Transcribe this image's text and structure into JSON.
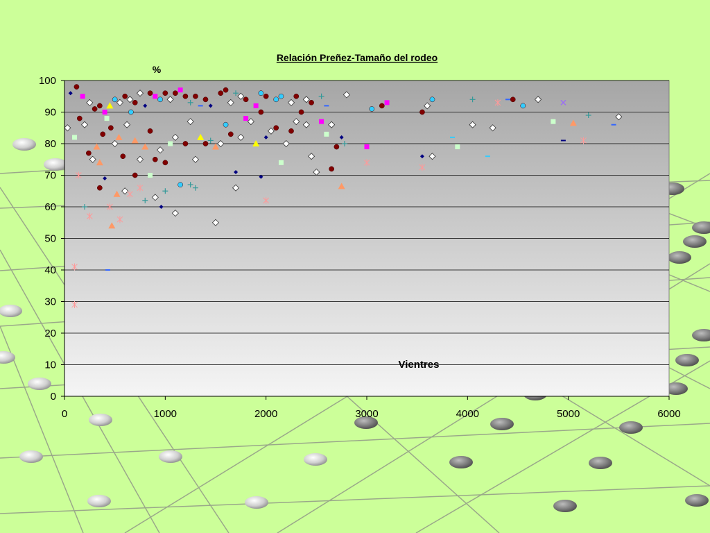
{
  "chart_data": {
    "type": "scatter",
    "title": "Relación Preñez-Tamaño del rodeo",
    "ylabel": "%",
    "xlabel": "Vientres",
    "xlim": [
      0,
      6000
    ],
    "ylim": [
      0,
      100
    ],
    "xticks": [
      0,
      1000,
      2000,
      3000,
      4000,
      5000,
      6000
    ],
    "yticks": [
      0,
      10,
      20,
      30,
      40,
      50,
      60,
      70,
      80,
      90,
      100
    ],
    "grid": true,
    "legend": "none",
    "background_color": "#ccff99",
    "plot_gradient": [
      "#a6a6a6",
      "#f5f5f5"
    ],
    "points": [
      {
        "x": 60,
        "y": 96,
        "m": "diamond",
        "c": "#000080"
      },
      {
        "x": 120,
        "y": 98,
        "m": "circle",
        "c": "#800000"
      },
      {
        "x": 180,
        "y": 95,
        "m": "square",
        "c": "#ff00ff"
      },
      {
        "x": 250,
        "y": 93,
        "m": "diamond_open",
        "c": "#ffffff"
      },
      {
        "x": 300,
        "y": 91,
        "m": "circle",
        "c": "#800000"
      },
      {
        "x": 350,
        "y": 92,
        "m": "circle",
        "c": "#800000"
      },
      {
        "x": 400,
        "y": 90,
        "m": "square",
        "c": "#ff00ff"
      },
      {
        "x": 450,
        "y": 92,
        "m": "triangle",
        "c": "#ffff00"
      },
      {
        "x": 500,
        "y": 94,
        "m": "circle",
        "c": "#33ccff"
      },
      {
        "x": 550,
        "y": 93,
        "m": "diamond_open",
        "c": "#ffffff"
      },
      {
        "x": 600,
        "y": 95,
        "m": "circle",
        "c": "#800000"
      },
      {
        "x": 650,
        "y": 94,
        "m": "diamond_open",
        "c": "#ffffff"
      },
      {
        "x": 700,
        "y": 93,
        "m": "circle",
        "c": "#800000"
      },
      {
        "x": 750,
        "y": 96,
        "m": "diamond_open",
        "c": "#ffffff"
      },
      {
        "x": 800,
        "y": 92,
        "m": "diamond",
        "c": "#000080"
      },
      {
        "x": 850,
        "y": 96,
        "m": "circle",
        "c": "#800000"
      },
      {
        "x": 900,
        "y": 95,
        "m": "square",
        "c": "#ff00ff"
      },
      {
        "x": 950,
        "y": 94,
        "m": "circle",
        "c": "#33ccff"
      },
      {
        "x": 1000,
        "y": 96,
        "m": "circle",
        "c": "#800000"
      },
      {
        "x": 1050,
        "y": 94,
        "m": "diamond_open",
        "c": "#ffffff"
      },
      {
        "x": 1100,
        "y": 96,
        "m": "circle",
        "c": "#800000"
      },
      {
        "x": 1150,
        "y": 97,
        "m": "square",
        "c": "#ff00ff"
      },
      {
        "x": 1200,
        "y": 95,
        "m": "circle",
        "c": "#800000"
      },
      {
        "x": 1250,
        "y": 93,
        "m": "plus",
        "c": "#339999"
      },
      {
        "x": 1300,
        "y": 95,
        "m": "circle",
        "c": "#800000"
      },
      {
        "x": 1350,
        "y": 92,
        "m": "dash",
        "c": "#3366ff"
      },
      {
        "x": 1400,
        "y": 94,
        "m": "circle",
        "c": "#800000"
      },
      {
        "x": 1450,
        "y": 92,
        "m": "diamond",
        "c": "#000080"
      },
      {
        "x": 1550,
        "y": 96,
        "m": "circle",
        "c": "#800000"
      },
      {
        "x": 1600,
        "y": 97,
        "m": "circle",
        "c": "#800000"
      },
      {
        "x": 1650,
        "y": 93,
        "m": "diamond_open",
        "c": "#ffffff"
      },
      {
        "x": 1700,
        "y": 96,
        "m": "plus",
        "c": "#339999"
      },
      {
        "x": 1750,
        "y": 95,
        "m": "diamond_open",
        "c": "#ffffff"
      },
      {
        "x": 1800,
        "y": 94,
        "m": "circle",
        "c": "#800000"
      },
      {
        "x": 1900,
        "y": 92,
        "m": "square",
        "c": "#ff00ff"
      },
      {
        "x": 1950,
        "y": 96,
        "m": "circle",
        "c": "#33ccff"
      },
      {
        "x": 2000,
        "y": 95,
        "m": "circle",
        "c": "#800000"
      },
      {
        "x": 2100,
        "y": 94,
        "m": "circle",
        "c": "#33ccff"
      },
      {
        "x": 2150,
        "y": 95,
        "m": "circle",
        "c": "#33ccff"
      },
      {
        "x": 2250,
        "y": 93,
        "m": "diamond_open",
        "c": "#ffffff"
      },
      {
        "x": 2300,
        "y": 95,
        "m": "circle",
        "c": "#800000"
      },
      {
        "x": 2400,
        "y": 94,
        "m": "diamond_open",
        "c": "#ffffff"
      },
      {
        "x": 2450,
        "y": 93,
        "m": "circle",
        "c": "#800000"
      },
      {
        "x": 2550,
        "y": 95,
        "m": "plus",
        "c": "#339999"
      },
      {
        "x": 2600,
        "y": 92,
        "m": "dash",
        "c": "#3366ff"
      },
      {
        "x": 2800,
        "y": 95.5,
        "m": "diamond_open",
        "c": "#ffffff"
      },
      {
        "x": 3050,
        "y": 91,
        "m": "circle",
        "c": "#33ccff"
      },
      {
        "x": 3150,
        "y": 92,
        "m": "circle",
        "c": "#800000"
      },
      {
        "x": 3200,
        "y": 93,
        "m": "square",
        "c": "#ff00ff"
      },
      {
        "x": 3550,
        "y": 90,
        "m": "circle",
        "c": "#800000"
      },
      {
        "x": 3600,
        "y": 92,
        "m": "diamond_open",
        "c": "#ffffff"
      },
      {
        "x": 3650,
        "y": 94,
        "m": "circle",
        "c": "#33ccff"
      },
      {
        "x": 4050,
        "y": 94,
        "m": "plus",
        "c": "#339999"
      },
      {
        "x": 4450,
        "y": 94,
        "m": "circle",
        "c": "#800000"
      },
      {
        "x": 4550,
        "y": 92,
        "m": "circle",
        "c": "#33ccff"
      },
      {
        "x": 4700,
        "y": 94,
        "m": "diamond_open",
        "c": "#ffffff"
      },
      {
        "x": 4950,
        "y": 93,
        "m": "cross",
        "c": "#9966ff"
      },
      {
        "x": 5200,
        "y": 89,
        "m": "plus",
        "c": "#339999"
      },
      {
        "x": 5500,
        "y": 88.5,
        "m": "diamond_open",
        "c": "#ffffff"
      },
      {
        "x": 30,
        "y": 85,
        "m": "diamond_open",
        "c": "#ffffff"
      },
      {
        "x": 100,
        "y": 82,
        "m": "square",
        "c": "#ccffcc"
      },
      {
        "x": 150,
        "y": 88,
        "m": "circle",
        "c": "#800000"
      },
      {
        "x": 200,
        "y": 86,
        "m": "diamond_open",
        "c": "#ffffff"
      },
      {
        "x": 240,
        "y": 77,
        "m": "circle",
        "c": "#800000"
      },
      {
        "x": 280,
        "y": 75,
        "m": "diamond_open",
        "c": "#ffffff"
      },
      {
        "x": 320,
        "y": 79,
        "m": "triangle",
        "c": "#ff9966"
      },
      {
        "x": 350,
        "y": 74,
        "m": "triangle",
        "c": "#ff9966"
      },
      {
        "x": 380,
        "y": 83,
        "m": "circle",
        "c": "#800000"
      },
      {
        "x": 420,
        "y": 88,
        "m": "square",
        "c": "#ccffcc"
      },
      {
        "x": 460,
        "y": 85,
        "m": "circle",
        "c": "#800000"
      },
      {
        "x": 500,
        "y": 80,
        "m": "diamond_open",
        "c": "#ffffff"
      },
      {
        "x": 540,
        "y": 82,
        "m": "triangle",
        "c": "#ff9966"
      },
      {
        "x": 580,
        "y": 76,
        "m": "circle",
        "c": "#800000"
      },
      {
        "x": 620,
        "y": 86,
        "m": "diamond_open",
        "c": "#ffffff"
      },
      {
        "x": 660,
        "y": 90,
        "m": "circle",
        "c": "#33ccff"
      },
      {
        "x": 700,
        "y": 81,
        "m": "triangle",
        "c": "#ff9966"
      },
      {
        "x": 750,
        "y": 75,
        "m": "diamond_open",
        "c": "#ffffff"
      },
      {
        "x": 800,
        "y": 79,
        "m": "triangle",
        "c": "#ff9966"
      },
      {
        "x": 850,
        "y": 84,
        "m": "circle",
        "c": "#800000"
      },
      {
        "x": 900,
        "y": 75,
        "m": "circle",
        "c": "#800000"
      },
      {
        "x": 950,
        "y": 78,
        "m": "diamond_open",
        "c": "#ffffff"
      },
      {
        "x": 1000,
        "y": 74,
        "m": "circle",
        "c": "#800000"
      },
      {
        "x": 1050,
        "y": 80,
        "m": "square",
        "c": "#ccffcc"
      },
      {
        "x": 1100,
        "y": 82,
        "m": "diamond_open",
        "c": "#ffffff"
      },
      {
        "x": 1150,
        "y": 67,
        "m": "circle",
        "c": "#33ccff"
      },
      {
        "x": 1200,
        "y": 80,
        "m": "circle",
        "c": "#800000"
      },
      {
        "x": 1250,
        "y": 87,
        "m": "diamond_open",
        "c": "#ffffff"
      },
      {
        "x": 1300,
        "y": 75,
        "m": "diamond_open",
        "c": "#ffffff"
      },
      {
        "x": 1350,
        "y": 82,
        "m": "triangle",
        "c": "#ffff00"
      },
      {
        "x": 1400,
        "y": 80,
        "m": "circle",
        "c": "#800000"
      },
      {
        "x": 1450,
        "y": 81,
        "m": "plus",
        "c": "#339999"
      },
      {
        "x": 1500,
        "y": 79,
        "m": "triangle",
        "c": "#ff9966"
      },
      {
        "x": 1550,
        "y": 80,
        "m": "diamond_open",
        "c": "#ffffff"
      },
      {
        "x": 1600,
        "y": 86,
        "m": "circle",
        "c": "#33ccff"
      },
      {
        "x": 1650,
        "y": 83,
        "m": "circle",
        "c": "#800000"
      },
      {
        "x": 1700,
        "y": 71,
        "m": "diamond",
        "c": "#000080"
      },
      {
        "x": 1750,
        "y": 82,
        "m": "diamond_open",
        "c": "#ffffff"
      },
      {
        "x": 1800,
        "y": 88,
        "m": "square",
        "c": "#ff00ff"
      },
      {
        "x": 1850,
        "y": 87,
        "m": "diamond_open",
        "c": "#ffffff"
      },
      {
        "x": 1900,
        "y": 80,
        "m": "triangle",
        "c": "#ffff00"
      },
      {
        "x": 1950,
        "y": 90,
        "m": "circle",
        "c": "#800000"
      },
      {
        "x": 2000,
        "y": 82,
        "m": "diamond",
        "c": "#000080"
      },
      {
        "x": 2050,
        "y": 84,
        "m": "diamond_open",
        "c": "#ffffff"
      },
      {
        "x": 2100,
        "y": 85,
        "m": "circle",
        "c": "#800000"
      },
      {
        "x": 2150,
        "y": 74,
        "m": "square",
        "c": "#ccffcc"
      },
      {
        "x": 2200,
        "y": 80,
        "m": "diamond_open",
        "c": "#ffffff"
      },
      {
        "x": 2250,
        "y": 84,
        "m": "circle",
        "c": "#800000"
      },
      {
        "x": 2300,
        "y": 87,
        "m": "diamond_open",
        "c": "#ffffff"
      },
      {
        "x": 2350,
        "y": 90,
        "m": "circle",
        "c": "#800000"
      },
      {
        "x": 2400,
        "y": 86,
        "m": "diamond_open",
        "c": "#ffffff"
      },
      {
        "x": 2450,
        "y": 76,
        "m": "diamond_open",
        "c": "#ffffff"
      },
      {
        "x": 2500,
        "y": 71,
        "m": "diamond_open",
        "c": "#ffffff"
      },
      {
        "x": 2550,
        "y": 87,
        "m": "square",
        "c": "#ff00ff"
      },
      {
        "x": 2600,
        "y": 83,
        "m": "square",
        "c": "#ccffcc"
      },
      {
        "x": 2650,
        "y": 86,
        "m": "diamond_open",
        "c": "#ffffff"
      },
      {
        "x": 2650,
        "y": 72,
        "m": "circle",
        "c": "#800000"
      },
      {
        "x": 2700,
        "y": 79,
        "m": "circle",
        "c": "#800000"
      },
      {
        "x": 2750,
        "y": 82,
        "m": "diamond",
        "c": "#000080"
      },
      {
        "x": 2780,
        "y": 80,
        "m": "plus",
        "c": "#339999"
      },
      {
        "x": 3000,
        "y": 79,
        "m": "square",
        "c": "#ff00ff"
      },
      {
        "x": 3550,
        "y": 76,
        "m": "diamond",
        "c": "#000080"
      },
      {
        "x": 3650,
        "y": 76,
        "m": "diamond_open",
        "c": "#ffffff"
      },
      {
        "x": 3900,
        "y": 79,
        "m": "square",
        "c": "#ccffcc"
      },
      {
        "x": 4050,
        "y": 86,
        "m": "diamond_open",
        "c": "#ffffff"
      },
      {
        "x": 4250,
        "y": 85,
        "m": "diamond_open",
        "c": "#ffffff"
      },
      {
        "x": 4850,
        "y": 87,
        "m": "square",
        "c": "#ccffcc"
      },
      {
        "x": 4950,
        "y": 81,
        "m": "dash",
        "c": "#000080"
      },
      {
        "x": 5050,
        "y": 86.5,
        "m": "triangle",
        "c": "#ff9966"
      },
      {
        "x": 5150,
        "y": 81,
        "m": "star",
        "c": "#ff9999"
      },
      {
        "x": 200,
        "y": 60,
        "m": "plus",
        "c": "#339999"
      },
      {
        "x": 250,
        "y": 57,
        "m": "star",
        "c": "#ff9999"
      },
      {
        "x": 350,
        "y": 66,
        "m": "circle",
        "c": "#800000"
      },
      {
        "x": 400,
        "y": 69,
        "m": "diamond",
        "c": "#000080"
      },
      {
        "x": 450,
        "y": 60,
        "m": "star",
        "c": "#ff9999"
      },
      {
        "x": 470,
        "y": 54,
        "m": "triangle",
        "c": "#ff9966"
      },
      {
        "x": 520,
        "y": 64,
        "m": "triangle",
        "c": "#ff9966"
      },
      {
        "x": 550,
        "y": 56,
        "m": "star",
        "c": "#ff9999"
      },
      {
        "x": 600,
        "y": 65,
        "m": "diamond_open",
        "c": "#ffffff"
      },
      {
        "x": 650,
        "y": 64,
        "m": "star",
        "c": "#ff9999"
      },
      {
        "x": 700,
        "y": 70,
        "m": "circle",
        "c": "#800000"
      },
      {
        "x": 750,
        "y": 66,
        "m": "star",
        "c": "#ff9999"
      },
      {
        "x": 800,
        "y": 62,
        "m": "plus",
        "c": "#339999"
      },
      {
        "x": 850,
        "y": 70,
        "m": "square",
        "c": "#ccffcc"
      },
      {
        "x": 900,
        "y": 63,
        "m": "diamond_open",
        "c": "#ffffff"
      },
      {
        "x": 960,
        "y": 60,
        "m": "diamond",
        "c": "#000080"
      },
      {
        "x": 1000,
        "y": 65,
        "m": "plus",
        "c": "#339999"
      },
      {
        "x": 1100,
        "y": 58,
        "m": "diamond_open",
        "c": "#ffffff"
      },
      {
        "x": 1250,
        "y": 67,
        "m": "plus",
        "c": "#339999"
      },
      {
        "x": 1300,
        "y": 66,
        "m": "plus",
        "c": "#339999"
      },
      {
        "x": 1500,
        "y": 55,
        "m": "diamond_open",
        "c": "#ffffff"
      },
      {
        "x": 1700,
        "y": 66,
        "m": "diamond_open",
        "c": "#ffffff"
      },
      {
        "x": 1950,
        "y": 69.5,
        "m": "diamond",
        "c": "#000080"
      },
      {
        "x": 2000,
        "y": 62,
        "m": "star",
        "c": "#ff9999"
      },
      {
        "x": 2750,
        "y": 66.5,
        "m": "triangle",
        "c": "#ff9966"
      },
      {
        "x": 3000,
        "y": 74,
        "m": "star",
        "c": "#ff9999"
      },
      {
        "x": 3550,
        "y": 72.5,
        "m": "star",
        "c": "#ff9999"
      },
      {
        "x": 100,
        "y": 41,
        "m": "star",
        "c": "#ff9999"
      },
      {
        "x": 100,
        "y": 29,
        "m": "star",
        "c": "#ff9999"
      },
      {
        "x": 430,
        "y": 40,
        "m": "dash",
        "c": "#3366ff"
      },
      {
        "x": 140,
        "y": 70,
        "m": "star",
        "c": "#ff9999"
      },
      {
        "x": 4300,
        "y": 93,
        "m": "star",
        "c": "#ff9999"
      },
      {
        "x": 3850,
        "y": 82,
        "m": "dash",
        "c": "#33ccff"
      },
      {
        "x": 4200,
        "y": 76,
        "m": "dash",
        "c": "#33ccff"
      },
      {
        "x": 4400,
        "y": 94,
        "m": "dash",
        "c": "#3366ff"
      },
      {
        "x": 5450,
        "y": 86,
        "m": "dash",
        "c": "#3366ff"
      }
    ]
  }
}
